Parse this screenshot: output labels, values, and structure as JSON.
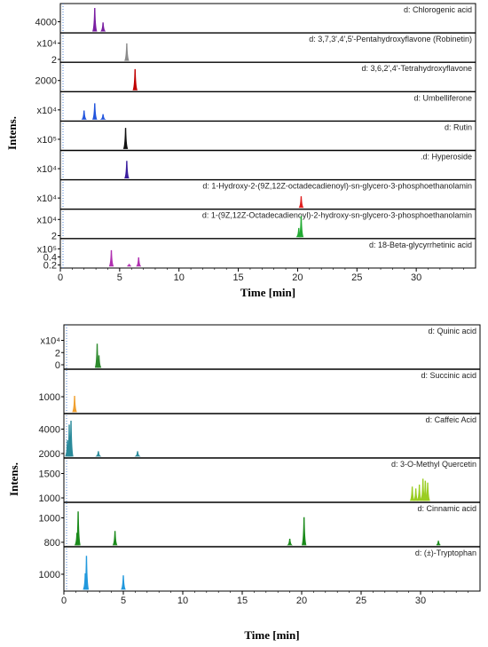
{
  "chart_data": [
    {
      "type": "line",
      "ylabel": "Intens.",
      "xlabel": "Time [min]",
      "xlim": [
        0,
        35
      ],
      "xticks": [
        "0",
        "5",
        "10",
        "15",
        "20",
        "25",
        "30"
      ],
      "panels": [
        {
          "label": "d: Chlorogenic acid",
          "ticks": [
            "4000"
          ],
          "color": "#7a1fa2",
          "peaks": [
            {
              "t": 2.9,
              "h": 0.95
            },
            {
              "t": 3.6,
              "h": 0.35
            }
          ]
        },
        {
          "label": "d: 3,7,3',4',5'-Pentahydroxyflavone (Robinetin)",
          "ticks": [
            "x10⁴",
            "2"
          ],
          "color": "#8c8c8c",
          "peaks": [
            {
              "t": 5.6,
              "h": 0.7
            }
          ]
        },
        {
          "label": "d: 3,6,2',4'-Tetrahydroxyflavone",
          "ticks": [
            "2000"
          ],
          "color": "#c00000",
          "peaks": [
            {
              "t": 6.3,
              "h": 0.85
            }
          ]
        },
        {
          "label": "d: Umbelliferone",
          "ticks": [
            "x10⁴"
          ],
          "color": "#2255dd",
          "peaks": [
            {
              "t": 2.0,
              "h": 0.35
            },
            {
              "t": 2.9,
              "h": 0.65
            },
            {
              "t": 3.6,
              "h": 0.2
            }
          ]
        },
        {
          "label": "d: Rutin",
          "ticks": [
            "x10⁵"
          ],
          "color": "#111111",
          "peaks": [
            {
              "t": 5.5,
              "h": 0.85
            }
          ]
        },
        {
          "label": ".d: Hyperoside",
          "ticks": [
            "x10⁴"
          ],
          "color": "#3b1f9e",
          "peaks": [
            {
              "t": 5.6,
              "h": 0.7
            }
          ]
        },
        {
          "label": "d: 1-Hydroxy-2-(9Z,12Z-octadecadienoyl)-sn-glycero-3-phosphoethanolamin",
          "ticks": [
            "x10⁴"
          ],
          "color": "#e02020",
          "peaks": [
            {
              "t": 20.3,
              "h": 0.45
            }
          ]
        },
        {
          "label": "d: 1-(9Z,12Z-Octadecadienoyl)-2-hydroxy-sn-glycero-3-phosphoethanolamin",
          "ticks": [
            "x10⁴",
            "2"
          ],
          "color": "#22aa33",
          "peaks": [
            {
              "t": 20.3,
              "h": 0.85
            },
            {
              "t": 20.1,
              "h": 0.35
            }
          ]
        },
        {
          "label": "d: 18-Beta-glycyrrhetinic acid",
          "ticks": [
            "x10⁵",
            "0.4",
            "0.2"
          ],
          "color": "#b030b0",
          "peaks": [
            {
              "t": 4.3,
              "h": 0.65
            },
            {
              "t": 6.6,
              "h": 0.35
            },
            {
              "t": 5.8,
              "h": 0.08
            }
          ]
        }
      ]
    },
    {
      "type": "line",
      "ylabel": "Intens.",
      "xlabel": "Time [min]",
      "xlim": [
        0,
        35
      ],
      "xticks": [
        "0",
        "5",
        "10",
        "15",
        "20",
        "25",
        "30"
      ],
      "panels": [
        {
          "label": "d: Quinic acid",
          "ticks": [
            "x10⁴",
            "2",
            "0"
          ],
          "color": "#2d8a2d",
          "peaks": [
            {
              "t": 2.8,
              "h": 0.6
            },
            {
              "t": 2.95,
              "h": 0.3
            }
          ]
        },
        {
          "label": "d: Succinic acid",
          "ticks": [
            "1000"
          ],
          "color": "#f0a030",
          "peaks": [
            {
              "t": 0.9,
              "h": 0.4
            }
          ]
        },
        {
          "label": "d: Caffeic Acid",
          "ticks": [
            "4000",
            "2000"
          ],
          "color": "#2a8a9a",
          "peaks": [
            {
              "t": 0.45,
              "h": 0.8
            },
            {
              "t": 0.6,
              "h": 0.9
            },
            {
              "t": 0.3,
              "h": 0.4
            },
            {
              "t": 2.9,
              "h": 0.12
            },
            {
              "t": 6.2,
              "h": 0.12
            }
          ]
        },
        {
          "label": "d: 3-O-Methyl Quercetin",
          "ticks": [
            "1500",
            "1000"
          ],
          "color": "#9acd22",
          "peaks": [
            {
              "t": 29.3,
              "h": 0.35
            },
            {
              "t": 29.6,
              "h": 0.3
            },
            {
              "t": 29.9,
              "h": 0.4
            },
            {
              "t": 30.2,
              "h": 0.55
            },
            {
              "t": 30.4,
              "h": 0.5
            },
            {
              "t": 30.6,
              "h": 0.45
            }
          ]
        },
        {
          "label": "d: Cinnamic acid",
          "ticks": [
            "1000",
            "800"
          ],
          "color": "#1a8a1a",
          "peaks": [
            {
              "t": 1.2,
              "h": 0.85
            },
            {
              "t": 1.1,
              "h": 0.3
            },
            {
              "t": 4.3,
              "h": 0.35
            },
            {
              "t": 19.0,
              "h": 0.15
            },
            {
              "t": 20.2,
              "h": 0.7
            },
            {
              "t": 31.5,
              "h": 0.1
            }
          ]
        },
        {
          "label": "d: (±)-Tryptophan",
          "ticks": [
            "1000"
          ],
          "color": "#2299dd",
          "peaks": [
            {
              "t": 1.9,
              "h": 0.85
            },
            {
              "t": 5.0,
              "h": 0.35
            },
            {
              "t": 1.8,
              "h": 0.4
            }
          ]
        }
      ]
    }
  ]
}
